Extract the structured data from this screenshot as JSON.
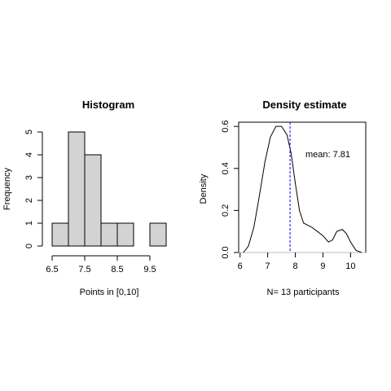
{
  "chart_data": [
    {
      "type": "bar",
      "title": "Histogram",
      "xlabel": "Points in [0,10]",
      "ylabel": "Frequency",
      "bins": [
        {
          "start": 6.5,
          "end": 7.0,
          "count": 1
        },
        {
          "start": 7.0,
          "end": 7.5,
          "count": 5
        },
        {
          "start": 7.5,
          "end": 8.0,
          "count": 4
        },
        {
          "start": 8.0,
          "end": 8.5,
          "count": 1
        },
        {
          "start": 8.5,
          "end": 9.0,
          "count": 1
        },
        {
          "start": 9.0,
          "end": 9.5,
          "count": 0
        },
        {
          "start": 9.5,
          "end": 10.0,
          "count": 1
        }
      ],
      "xticks": [
        6.5,
        7.5,
        8.5,
        9.5
      ],
      "xtick_labels": [
        "6.5",
        "7.5",
        "8.5",
        "9.5"
      ],
      "yticks": [
        0,
        1,
        2,
        3,
        4,
        5
      ],
      "ytick_labels": [
        "0",
        "1",
        "2",
        "3",
        "4",
        "5"
      ],
      "xlim": [
        6.5,
        10.0
      ],
      "ylim": [
        0,
        5
      ],
      "bar_fill": "#d3d3d3",
      "bar_stroke": "#000000",
      "grid": false
    },
    {
      "type": "line",
      "title": "Density estimate",
      "xlabel": "N= 13 participants",
      "ylabel": "Density",
      "x": [
        6.12,
        6.3,
        6.5,
        6.7,
        6.9,
        7.1,
        7.3,
        7.5,
        7.7,
        7.85,
        8.0,
        8.15,
        8.3,
        8.45,
        8.6,
        8.8,
        9.0,
        9.2,
        9.35,
        9.5,
        9.7,
        9.85,
        10.0,
        10.2,
        10.4
      ],
      "y": [
        0.0,
        0.03,
        0.12,
        0.27,
        0.43,
        0.55,
        0.6,
        0.6,
        0.56,
        0.47,
        0.33,
        0.2,
        0.14,
        0.13,
        0.12,
        0.1,
        0.08,
        0.05,
        0.06,
        0.1,
        0.11,
        0.09,
        0.05,
        0.01,
        0.0
      ],
      "xticks": [
        6,
        7,
        8,
        9,
        10
      ],
      "xtick_labels": [
        "6",
        "7",
        "8",
        "9",
        "10"
      ],
      "yticks": [
        0.0,
        0.2,
        0.4,
        0.6
      ],
      "ytick_labels": [
        "0.0",
        "0.2",
        "0.4",
        "0.6"
      ],
      "xlim": [
        5.95,
        10.55
      ],
      "ylim": [
        0,
        0.62
      ],
      "baseline_y": 0,
      "baseline_color": "#bebebe",
      "line_color": "#000000",
      "mean_value": 7.81,
      "mean_label": "mean: 7.81",
      "mean_color": "#0000ff",
      "grid": false
    }
  ]
}
